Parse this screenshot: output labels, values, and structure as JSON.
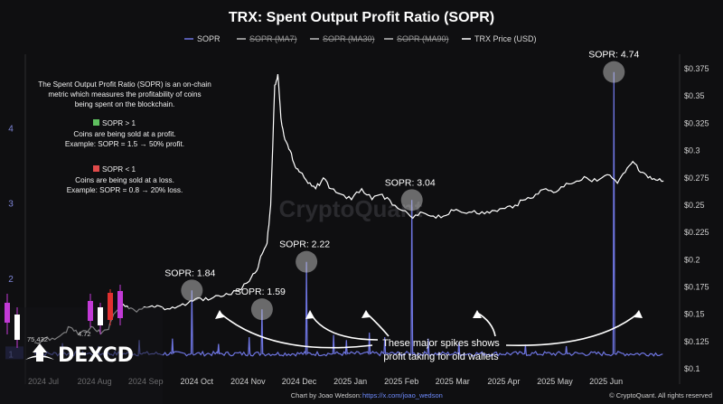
{
  "header": {
    "title": "TRX: Spent Output Profit Ratio (SOPR)"
  },
  "legend": [
    {
      "label": "SOPR",
      "color": "#6d74e0",
      "struck": false
    },
    {
      "label": "SOPR (MA7)",
      "color": "#bdbdbd",
      "struck": true
    },
    {
      "label": "SOPR (MA30)",
      "color": "#bdbdbd",
      "struck": true
    },
    {
      "label": "SOPR (MA90)",
      "color": "#bdbdbd",
      "struck": true
    },
    {
      "label": "TRX Price (USD)",
      "color": "#ffffff",
      "struck": false
    }
  ],
  "description": {
    "lines": [
      "The Spent Output Profit Ratio (SOPR) is an on-chain",
      "metric which measures the profitability of coins",
      "being spent on the blockchain."
    ],
    "profit": {
      "head": "SOPR > 1",
      "color": "#5fbf5f",
      "lines": [
        "Coins are being sold at a profit.",
        "Example: SOPR = 1.5 → 50% profit."
      ]
    },
    "loss": {
      "head": "SOPR < 1",
      "color": "#e04a4a",
      "lines": [
        "Coins are being sold at a loss.",
        "Example: SOPR = 0.8 → 20% loss."
      ]
    }
  },
  "watermark": "CryptoQuant",
  "annotation": {
    "lines": [
      "These major spikes shows",
      "profit taking for old wallets"
    ]
  },
  "footer": {
    "credit_prefix": "Chart by Joao Wedson: ",
    "credit_link": "https://x.com/joao_wedson",
    "copyright": "© CryptoQuant. All rights reserved"
  },
  "brand": {
    "name": "DEXCD",
    "overlay_nums": [
      "75.432",
      "4.72"
    ]
  },
  "chart_data": {
    "type": "line",
    "x_ticks": [
      "2024 Jul",
      "2024 Aug",
      "2024 Sep",
      "2024 Oct",
      "2024 Nov",
      "2024 Dec",
      "2025 Jan",
      "2025 Feb",
      "2025 Mar",
      "2025 Apr",
      "2025 May",
      "2025 Jun"
    ],
    "y_left": {
      "ticks": [
        "1",
        "2",
        "3",
        "4"
      ],
      "range": [
        0.8,
        5.0
      ]
    },
    "y_right": {
      "ticks": [
        "$0.1",
        "$0.125",
        "$0.15",
        "$0.175",
        "$0.2",
        "$0.225",
        "$0.25",
        "$0.275",
        "$0.3",
        "$0.325",
        "$0.35",
        "$0.375"
      ],
      "range": [
        0.1,
        0.385
      ]
    },
    "sopr_spikes": [
      {
        "t": 3.08,
        "value": 1.84,
        "label": "SOPR: 1.84"
      },
      {
        "t": 4.45,
        "value": 1.59,
        "label": "SOPR: 1.59"
      },
      {
        "t": 5.32,
        "value": 2.22,
        "label": "SOPR: 2.22"
      },
      {
        "t": 7.38,
        "value": 3.04,
        "label": "SOPR: 3.04"
      },
      {
        "t": 11.33,
        "value": 4.74,
        "label": "SOPR: 4.74"
      }
    ],
    "sopr_minor_spikes": [
      {
        "t": 0.55,
        "value": 1.14
      },
      {
        "t": 1.25,
        "value": 1.1
      },
      {
        "t": 2.05,
        "value": 1.18
      },
      {
        "t": 2.7,
        "value": 1.2
      },
      {
        "t": 3.6,
        "value": 1.13
      },
      {
        "t": 4.2,
        "value": 1.22
      },
      {
        "t": 5.85,
        "value": 1.25
      },
      {
        "t": 6.1,
        "value": 1.18
      },
      {
        "t": 6.55,
        "value": 1.28
      },
      {
        "t": 6.85,
        "value": 1.22
      },
      {
        "t": 7.7,
        "value": 1.2
      },
      {
        "t": 8.3,
        "value": 1.15
      },
      {
        "t": 9.6,
        "value": 1.12
      },
      {
        "t": 10.4,
        "value": 1.1
      }
    ],
    "price": [
      [
        0.0,
        0.124
      ],
      [
        0.15,
        0.126
      ],
      [
        0.35,
        0.128
      ],
      [
        0.55,
        0.132
      ],
      [
        0.7,
        0.138
      ],
      [
        0.85,
        0.132
      ],
      [
        1.0,
        0.135
      ],
      [
        1.15,
        0.138
      ],
      [
        1.3,
        0.132
      ],
      [
        1.45,
        0.136
      ],
      [
        1.55,
        0.15
      ],
      [
        1.7,
        0.158
      ],
      [
        1.85,
        0.155
      ],
      [
        2.0,
        0.152
      ],
      [
        2.2,
        0.156
      ],
      [
        2.4,
        0.158
      ],
      [
        2.6,
        0.155
      ],
      [
        2.8,
        0.157
      ],
      [
        3.0,
        0.16
      ],
      [
        3.2,
        0.165
      ],
      [
        3.4,
        0.163
      ],
      [
        3.6,
        0.167
      ],
      [
        3.8,
        0.168
      ],
      [
        4.0,
        0.172
      ],
      [
        4.2,
        0.18
      ],
      [
        4.35,
        0.19
      ],
      [
        4.45,
        0.205
      ],
      [
        4.55,
        0.215
      ],
      [
        4.62,
        0.25
      ],
      [
        4.7,
        0.36
      ],
      [
        4.76,
        0.37
      ],
      [
        4.82,
        0.33
      ],
      [
        4.9,
        0.31
      ],
      [
        5.0,
        0.3
      ],
      [
        5.1,
        0.285
      ],
      [
        5.2,
        0.28
      ],
      [
        5.35,
        0.27
      ],
      [
        5.5,
        0.265
      ],
      [
        5.65,
        0.275
      ],
      [
        5.8,
        0.265
      ],
      [
        6.0,
        0.26
      ],
      [
        6.2,
        0.255
      ],
      [
        6.4,
        0.265
      ],
      [
        6.6,
        0.255
      ],
      [
        6.8,
        0.26
      ],
      [
        7.0,
        0.25
      ],
      [
        7.2,
        0.245
      ],
      [
        7.4,
        0.238
      ],
      [
        7.6,
        0.243
      ],
      [
        7.8,
        0.24
      ],
      [
        8.0,
        0.24
      ],
      [
        8.2,
        0.245
      ],
      [
        8.4,
        0.243
      ],
      [
        8.6,
        0.245
      ],
      [
        8.8,
        0.242
      ],
      [
        9.0,
        0.245
      ],
      [
        9.2,
        0.247
      ],
      [
        9.4,
        0.25
      ],
      [
        9.6,
        0.255
      ],
      [
        9.8,
        0.26
      ],
      [
        10.0,
        0.265
      ],
      [
        10.2,
        0.262
      ],
      [
        10.4,
        0.27
      ],
      [
        10.6,
        0.272
      ],
      [
        10.8,
        0.275
      ],
      [
        11.0,
        0.272
      ],
      [
        11.2,
        0.278
      ],
      [
        11.4,
        0.27
      ],
      [
        11.55,
        0.28
      ],
      [
        11.7,
        0.29
      ],
      [
        11.85,
        0.28
      ],
      [
        12.0,
        0.275
      ],
      [
        12.15,
        0.273
      ],
      [
        12.3,
        0.272
      ]
    ]
  }
}
